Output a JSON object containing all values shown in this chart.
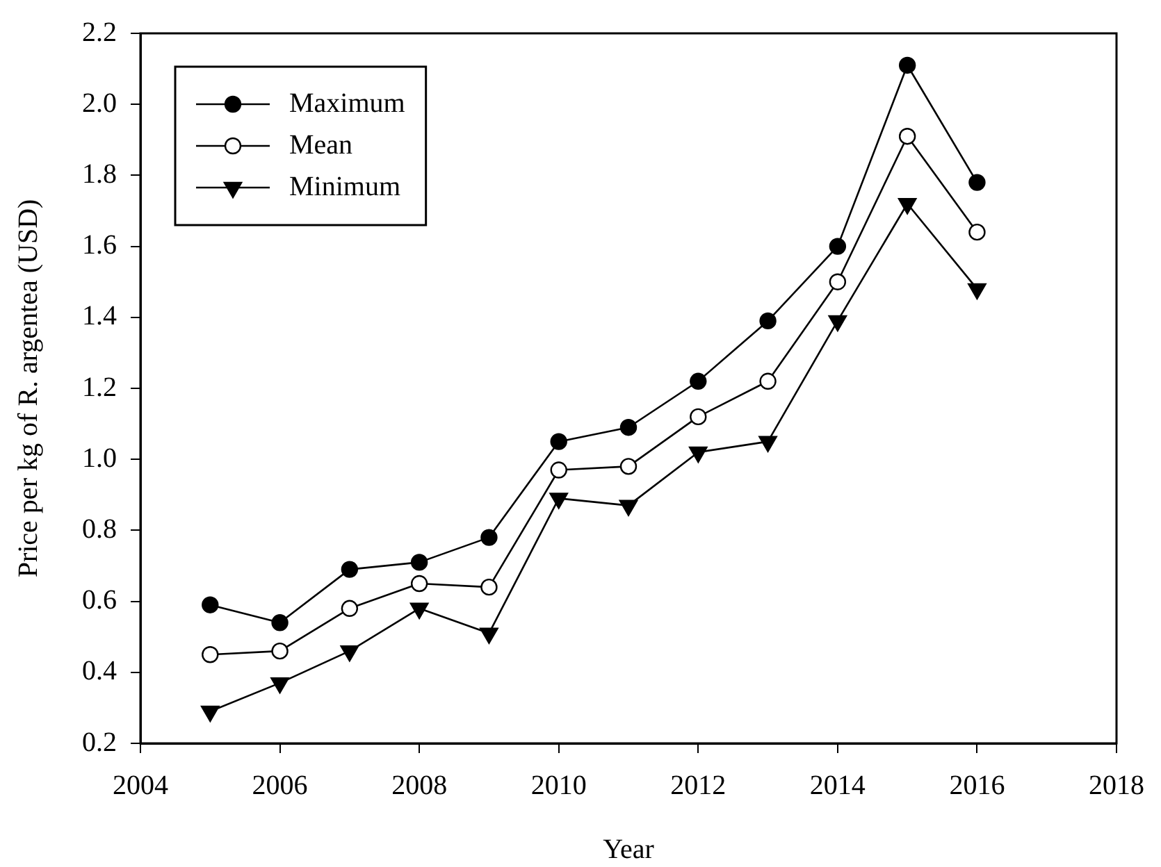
{
  "chart_data": {
    "type": "line",
    "xlabel": "Year",
    "ylabel": "Price per kg of R. argentea (USD)",
    "x": [
      2005,
      2006,
      2007,
      2008,
      2009,
      2010,
      2011,
      2012,
      2013,
      2014,
      2015,
      2016
    ],
    "series": [
      {
        "name": "Maximum",
        "color": "#000000",
        "marker": "circle",
        "values": [
          0.59,
          0.54,
          0.69,
          0.71,
          0.78,
          1.05,
          1.09,
          1.22,
          1.39,
          1.6,
          2.11,
          1.78
        ]
      },
      {
        "name": "Mean",
        "color": "#ffffff",
        "marker": "circle",
        "values": [
          0.45,
          0.46,
          0.58,
          0.65,
          0.64,
          0.97,
          0.98,
          1.12,
          1.22,
          1.5,
          1.91,
          1.64
        ]
      },
      {
        "name": "Minimum",
        "color": "#000000",
        "marker": "triangle",
        "values": [
          0.29,
          0.37,
          0.46,
          0.58,
          0.51,
          0.89,
          0.87,
          1.02,
          1.05,
          1.39,
          1.72,
          1.48
        ]
      }
    ],
    "xlim": [
      2004,
      2018
    ],
    "xticks": [
      2004,
      2006,
      2008,
      2010,
      2012,
      2014,
      2016,
      2018
    ],
    "ylim": [
      0.2,
      2.2
    ],
    "yticks": [
      0.2,
      0.4,
      0.6,
      0.8,
      {
        "value": 1,
        "label": "1.0"
      },
      1.2,
      1.4,
      1.6,
      1.8,
      {
        "value": 2,
        "label": "2.0"
      },
      2.2
    ],
    "grid": false,
    "legend": "top left"
  }
}
